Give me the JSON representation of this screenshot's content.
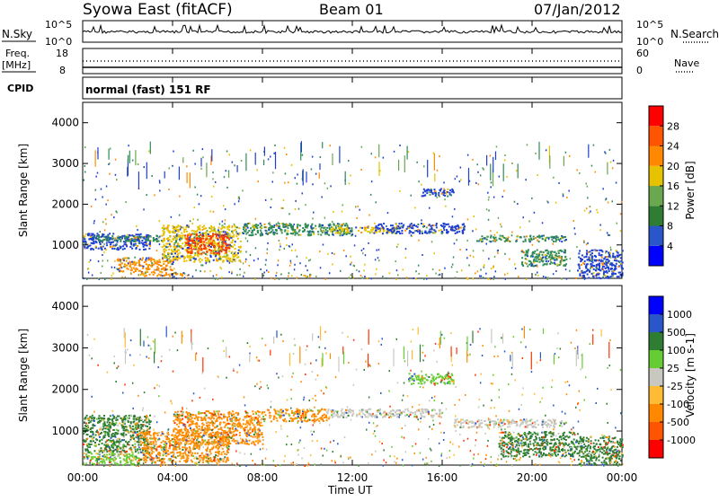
{
  "header": {
    "station": "Syowa East (fitACF)",
    "beam": "Beam 01",
    "date": "07/Jan/2012"
  },
  "noise_panel": {
    "left_label": "N.Sky",
    "right_label": "N.Search",
    "left_ticks": [
      "10^5",
      "10^0"
    ],
    "right_ticks": [
      "10^5",
      "10^0"
    ]
  },
  "freq_panel": {
    "left_label_1": "Freq.",
    "left_label_2": "[MHz]",
    "right_label": "Nave",
    "left_ticks": [
      "18",
      "8"
    ],
    "right_ticks": [
      "60",
      "0"
    ]
  },
  "cpid_panel": {
    "label": "CPID",
    "value": "normal (fast) 151 RF"
  },
  "chart_data": [
    {
      "type": "heatmap",
      "name": "power",
      "ylabel": "Slant Range [km]",
      "ylim": [
        180,
        4500
      ],
      "yticks": [
        "4000",
        "3000",
        "2000",
        "1000"
      ],
      "colorbar_label": "Power [dB]",
      "colorbar_ticks": [
        "28",
        "24",
        "20",
        "16",
        "12",
        "8",
        "4"
      ],
      "colorbar_colors": [
        "#0000ff",
        "#2a56c9",
        "#2e7d32",
        "#6aa84f",
        "#e6c200",
        "#ff8800",
        "#ff5500",
        "#ff0000"
      ],
      "bands": [
        {
          "t0": 0.0,
          "t1": 3.0,
          "r0": 900,
          "r1": 1300,
          "level": "blue"
        },
        {
          "t0": 0.5,
          "t1": 3.5,
          "r0": 1100,
          "r1": 1250,
          "level": "green"
        },
        {
          "t0": 1.5,
          "t1": 4.0,
          "r0": 350,
          "r1": 700,
          "level": "orange"
        },
        {
          "t0": 2.5,
          "t1": 4.5,
          "r0": 250,
          "r1": 350,
          "level": "orange"
        },
        {
          "t0": 3.5,
          "t1": 7.0,
          "r0": 600,
          "r1": 1500,
          "level": "yellow"
        },
        {
          "t0": 4.5,
          "t1": 6.5,
          "r0": 800,
          "r1": 1300,
          "level": "red"
        },
        {
          "t0": 7.0,
          "t1": 12.0,
          "r0": 1250,
          "r1": 1550,
          "level": "green"
        },
        {
          "t0": 11.0,
          "t1": 14.0,
          "r0": 1300,
          "r1": 1450,
          "level": "yellow"
        },
        {
          "t0": 13.0,
          "t1": 17.0,
          "r0": 1300,
          "r1": 1550,
          "level": "blue"
        },
        {
          "t0": 15.0,
          "t1": 16.5,
          "r0": 2200,
          "r1": 2400,
          "level": "blue"
        },
        {
          "t0": 17.5,
          "t1": 21.5,
          "r0": 1100,
          "r1": 1250,
          "level": "green"
        },
        {
          "t0": 19.5,
          "t1": 21.5,
          "r0": 500,
          "r1": 900,
          "level": "green"
        },
        {
          "t0": 22.0,
          "t1": 24.0,
          "r0": 200,
          "r1": 900,
          "level": "blue"
        }
      ]
    },
    {
      "type": "heatmap",
      "name": "velocity",
      "ylabel": "Slant Range [km]",
      "ylim": [
        180,
        4500
      ],
      "yticks": [
        "4000",
        "3000",
        "2000",
        "1000"
      ],
      "colorbar_label": "Velocity [m s-1]",
      "colorbar_ticks": [
        "1000",
        "500",
        "100",
        "25",
        "-25",
        "-100",
        "-500",
        "-1000"
      ],
      "colorbar_colors": [
        "#ff0000",
        "#ff5500",
        "#ff8800",
        "#ffbb33",
        "#c8c8c0",
        "#66cc33",
        "#2e7d32",
        "#2a56c9",
        "#0000ff"
      ],
      "bands": [
        {
          "t0": 0.0,
          "t1": 3.0,
          "r0": 500,
          "r1": 1400,
          "level": "green"
        },
        {
          "t0": 0.0,
          "t1": 2.5,
          "r0": 200,
          "r1": 500,
          "level": "lightgreen"
        },
        {
          "t0": 2.5,
          "t1": 6.5,
          "r0": 250,
          "r1": 1000,
          "level": "orange"
        },
        {
          "t0": 4.0,
          "t1": 8.0,
          "r0": 700,
          "r1": 1500,
          "level": "orange"
        },
        {
          "t0": 8.0,
          "t1": 11.0,
          "r0": 1250,
          "r1": 1550,
          "level": "orange"
        },
        {
          "t0": 11.0,
          "t1": 16.0,
          "r0": 1350,
          "r1": 1550,
          "level": "gray"
        },
        {
          "t0": 14.5,
          "t1": 16.5,
          "r0": 2150,
          "r1": 2400,
          "level": "lightgreen"
        },
        {
          "t0": 16.5,
          "t1": 21.5,
          "r0": 1100,
          "r1": 1300,
          "level": "gray"
        },
        {
          "t0": 18.5,
          "t1": 22.0,
          "r0": 400,
          "r1": 1000,
          "level": "green"
        },
        {
          "t0": 22.0,
          "t1": 24.0,
          "r0": 200,
          "r1": 900,
          "level": "green"
        }
      ]
    }
  ],
  "x_axis": {
    "label": "Time UT",
    "ticks": [
      "00:00",
      "04:00",
      "08:00",
      "12:00",
      "16:00",
      "20:00",
      "00:00"
    ]
  }
}
